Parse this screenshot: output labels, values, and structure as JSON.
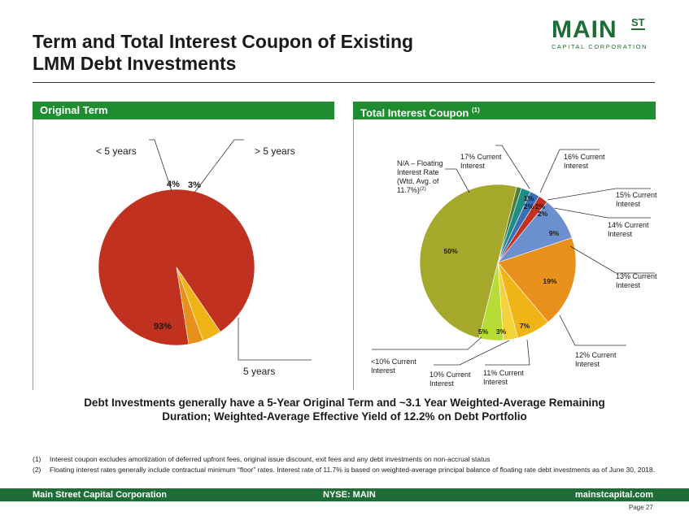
{
  "slide": {
    "title_line1": "Term and Total Interest Coupon of Existing",
    "title_line2": "LMM Debt Investments",
    "takeaway_line1": "Debt Investments generally have a 5-Year Original Term and ~3.1 Year Weighted-Average Remaining",
    "takeaway_line2": "Duration;   Weighted-Average Effective Yield of 12.2% on Debt Portfolio",
    "page": "Page  27"
  },
  "logo": {
    "main": "MAIN",
    "st": "ST",
    "sub": "CAPITAL CORPORATION"
  },
  "footnotes": [
    {
      "num": "(1)",
      "text": "Interest coupon excludes amortization of deferred upfront fees, original issue discount, exit fees and any debt investments on non-accrual status"
    },
    {
      "num": "(2)",
      "text": "Floating interest rates generally include contractual minimum “floor” rates. Interest rate of 11.7% is based on weighted-average principal balance of floating rate debt investments as of June 30, 2018."
    }
  ],
  "footer": {
    "left": "Main Street Capital Corporation",
    "center": "NYSE: MAIN",
    "right": "mainstcapital.com"
  },
  "colors": {
    "brand_green": "#1f6d36",
    "header_green": "#1f8c2f"
  },
  "chart_data": [
    {
      "type": "pie",
      "title": "Original Term",
      "categories": [
        "5 years",
        "< 5 years",
        "> 5 years"
      ],
      "values": [
        93,
        4,
        3
      ],
      "value_labels": [
        "93%",
        "4%",
        "3%"
      ],
      "colors": [
        "#c0311f",
        "#f0b416",
        "#e8901c"
      ]
    },
    {
      "type": "pie",
      "title": "Total Interest Coupon",
      "title_note": "(1)",
      "categories": [
        "17% Current Interest",
        "16% Current Interest",
        "15% Current Interest",
        "14% Current Interest",
        "13% Current Interest",
        "12% Current Interest",
        "11% Current Interest",
        "10% Current Interest",
        "<10% Current Interest",
        "N/A – Floating Interest Rate (Wtd. Avg. of 11.7%)"
      ],
      "note_marker": "(2)",
      "values": [
        1,
        2,
        2,
        2,
        9,
        19,
        7,
        3,
        5,
        50
      ],
      "value_labels": [
        "1%",
        "2%",
        "2%",
        "2%",
        "9%",
        "19%",
        "7%",
        "3%",
        "5%",
        "50%"
      ],
      "colors": [
        "#4f7f39",
        "#1f8f86",
        "#3b6fb5",
        "#c0311f",
        "#6b8fcf",
        "#e8901c",
        "#f0b416",
        "#f3d23a",
        "#b8dc36",
        "#a5a82a"
      ]
    }
  ]
}
